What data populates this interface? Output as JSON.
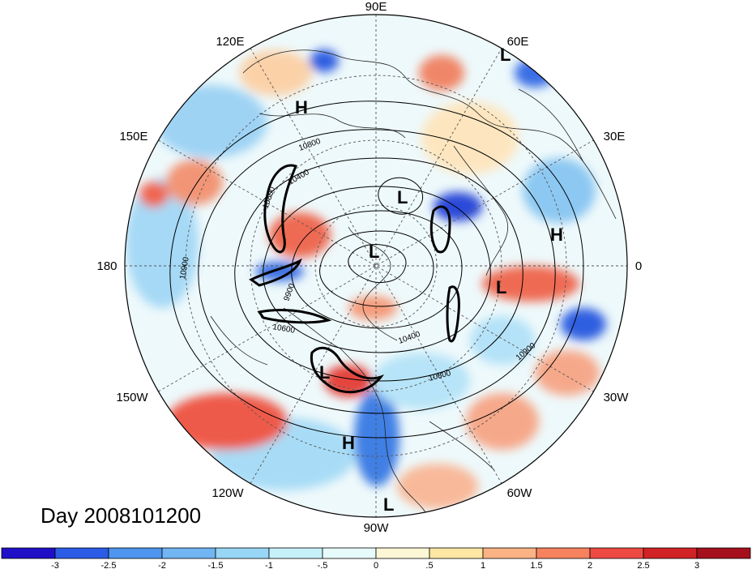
{
  "title_date": "Day 2008101200",
  "longitude_labels": [
    {
      "id": "lon-90e",
      "text": "90E"
    },
    {
      "id": "lon-60e",
      "text": "60E"
    },
    {
      "id": "lon-30e",
      "text": "30E"
    },
    {
      "id": "lon-0",
      "text": "0"
    },
    {
      "id": "lon-30w",
      "text": "30W"
    },
    {
      "id": "lon-60w",
      "text": "60W"
    },
    {
      "id": "lon-90w",
      "text": "90W"
    },
    {
      "id": "lon-120w",
      "text": "120W"
    },
    {
      "id": "lon-150w",
      "text": "150W"
    },
    {
      "id": "lon-180",
      "text": "180"
    },
    {
      "id": "lon-150e",
      "text": "150E"
    },
    {
      "id": "lon-120e",
      "text": "120E"
    }
  ],
  "pressure_centers": [
    {
      "id": "low-60e",
      "type": "L"
    },
    {
      "id": "high-120e",
      "type": "H"
    },
    {
      "id": "low-arctic-east",
      "type": "L"
    },
    {
      "id": "low-arctic-center",
      "type": "L"
    },
    {
      "id": "high-europe",
      "type": "H"
    },
    {
      "id": "low-atlantic",
      "type": "L"
    },
    {
      "id": "low-pacific",
      "type": "L"
    },
    {
      "id": "high-mexico",
      "type": "H"
    },
    {
      "id": "low-caribbean",
      "type": "L"
    }
  ],
  "contour_labels": [
    "10800",
    "10400",
    "10800",
    "10900",
    "9900",
    "10600",
    "10400",
    "10800",
    "10900"
  ],
  "colorbar": {
    "colors": [
      "#1f10c8",
      "#2c5be6",
      "#4d95ee",
      "#71b5f2",
      "#98d6f6",
      "#c6f1fa",
      "#e8fbfc",
      "#fdf7d6",
      "#fde7a3",
      "#fbb385",
      "#f6835e",
      "#ee4a43",
      "#d12225",
      "#a5101c"
    ],
    "labels": [
      "-3",
      "-2.5",
      "-2",
      "-1.5",
      "-1",
      "-.5",
      "0",
      ".5",
      "1",
      "1.5",
      "2",
      "2.5",
      "3"
    ]
  }
}
